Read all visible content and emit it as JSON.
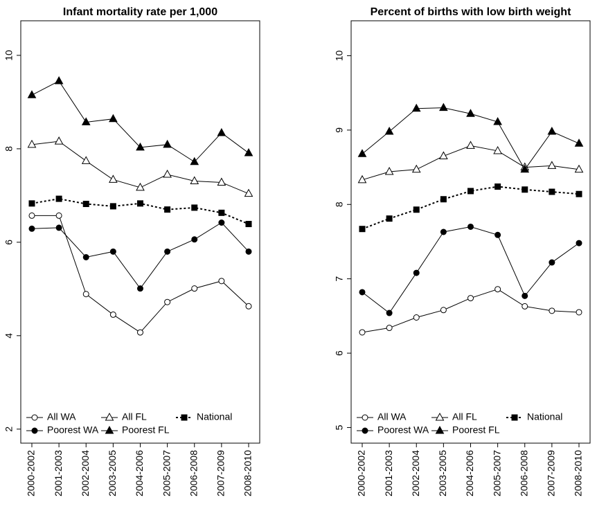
{
  "chart_data": [
    {
      "type": "line",
      "title": "Infant mortality rate per 1,000",
      "categories": [
        "2000-2002",
        "2001-2003",
        "2002-2004",
        "2003-2005",
        "2004-2006",
        "2005-2007",
        "2006-2008",
        "2007-2009",
        "2008-2010"
      ],
      "series": [
        {
          "name": "All WA",
          "color": "#000000",
          "marker": "open-circle",
          "line": "solid",
          "values": [
            6.57,
            6.57,
            4.89,
            4.45,
            4.07,
            4.72,
            5.01,
            5.17,
            4.63
          ]
        },
        {
          "name": "Poorest WA",
          "color": "#000000",
          "marker": "filled-circle",
          "line": "solid",
          "values": [
            6.29,
            6.31,
            5.68,
            5.8,
            5.01,
            5.8,
            6.06,
            6.42,
            5.8
          ]
        },
        {
          "name": "All FL",
          "color": "#000000",
          "marker": "open-triangle",
          "line": "solid",
          "values": [
            8.09,
            8.16,
            7.74,
            7.34,
            7.17,
            7.45,
            7.31,
            7.28,
            7.04
          ]
        },
        {
          "name": "Poorest FL",
          "color": "#000000",
          "marker": "filled-triangle",
          "line": "solid",
          "values": [
            9.15,
            9.45,
            8.57,
            8.64,
            8.03,
            8.09,
            7.72,
            8.34,
            7.91
          ]
        },
        {
          "name": "National",
          "color": "#000000",
          "marker": "filled-square",
          "line": "dotted",
          "values": [
            6.83,
            6.93,
            6.82,
            6.77,
            6.83,
            6.7,
            6.74,
            6.63,
            6.39
          ]
        }
      ],
      "ylim": [
        1.7,
        10.74
      ],
      "yticks": [
        2,
        4,
        6,
        8,
        10
      ],
      "legend": "bottom-left"
    },
    {
      "type": "line",
      "title": "Percent of births with low birth weight",
      "categories": [
        "2000-2002",
        "2001-2003",
        "2002-2004",
        "2003-2005",
        "2004-2006",
        "2005-2007",
        "2006-2008",
        "2007-2009",
        "2008-2010"
      ],
      "series": [
        {
          "name": "All WA",
          "color": "#000000",
          "marker": "open-circle",
          "line": "solid",
          "values": [
            6.28,
            6.34,
            6.48,
            6.58,
            6.74,
            6.86,
            6.63,
            6.57,
            6.55
          ]
        },
        {
          "name": "Poorest WA",
          "color": "#000000",
          "marker": "filled-circle",
          "line": "solid",
          "values": [
            6.82,
            6.54,
            7.08,
            7.63,
            7.7,
            7.59,
            6.77,
            7.22,
            7.48
          ]
        },
        {
          "name": "All FL",
          "color": "#000000",
          "marker": "open-triangle",
          "line": "solid",
          "values": [
            8.33,
            8.44,
            8.47,
            8.65,
            8.79,
            8.72,
            8.5,
            8.52,
            8.47
          ]
        },
        {
          "name": "Poorest FL",
          "color": "#000000",
          "marker": "filled-triangle",
          "line": "solid",
          "values": [
            8.68,
            8.98,
            9.29,
            9.3,
            9.22,
            9.11,
            8.47,
            8.98,
            8.82
          ]
        },
        {
          "name": "National",
          "color": "#000000",
          "marker": "filled-square",
          "line": "dotted",
          "values": [
            7.67,
            7.81,
            7.93,
            8.07,
            8.18,
            8.24,
            8.2,
            8.17,
            8.14
          ]
        }
      ],
      "ylim": [
        4.79,
        10.47
      ],
      "yticks": [
        5,
        6,
        7,
        8,
        9,
        10
      ],
      "legend": "bottom-left"
    }
  ]
}
